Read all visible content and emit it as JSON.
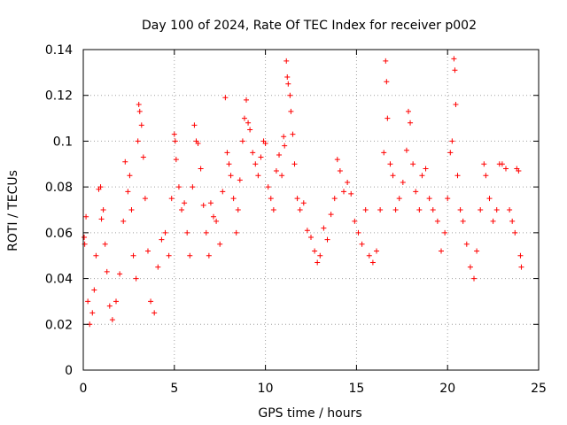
{
  "chart_data": {
    "type": "scatter",
    "title": "Day 100 of 2024, Rate Of TEC Index for receiver p002",
    "xlabel": "GPS time / hours",
    "ylabel": "ROTI / TECUs",
    "xlim": [
      0,
      25
    ],
    "ylim": [
      0,
      0.14
    ],
    "xticks": [
      0,
      5,
      10,
      15,
      20,
      25
    ],
    "xtick_labels": [
      "0",
      "5",
      "10",
      "15",
      "20",
      "25"
    ],
    "yticks": [
      0,
      0.02,
      0.04,
      0.06,
      0.08,
      0.1,
      0.12,
      0.14
    ],
    "ytick_labels": [
      "0",
      "0.02",
      "0.04",
      "0.06",
      "0.08",
      "0.1",
      "0.12",
      "0.14"
    ],
    "grid": true,
    "legend": "none",
    "marker": "+",
    "color": "#ff0000",
    "series": [
      {
        "values": [
          [
            0.05,
            0.058
          ],
          [
            0.08,
            0.055
          ],
          [
            0.15,
            0.067
          ],
          [
            0.25,
            0.03
          ],
          [
            0.35,
            0.02
          ],
          [
            0.5,
            0.025
          ],
          [
            0.6,
            0.035
          ],
          [
            0.7,
            0.05
          ],
          [
            0.85,
            0.079
          ],
          [
            0.95,
            0.08
          ],
          [
            1.0,
            0.066
          ],
          [
            1.1,
            0.07
          ],
          [
            1.2,
            0.055
          ],
          [
            1.3,
            0.043
          ],
          [
            1.45,
            0.028
          ],
          [
            1.6,
            0.022
          ],
          [
            1.8,
            0.03
          ],
          [
            2.0,
            0.042
          ],
          [
            2.2,
            0.065
          ],
          [
            2.3,
            0.091
          ],
          [
            2.45,
            0.078
          ],
          [
            2.55,
            0.085
          ],
          [
            2.65,
            0.07
          ],
          [
            2.75,
            0.05
          ],
          [
            2.9,
            0.04
          ],
          [
            3.0,
            0.1
          ],
          [
            3.05,
            0.116
          ],
          [
            3.1,
            0.113
          ],
          [
            3.2,
            0.107
          ],
          [
            3.3,
            0.093
          ],
          [
            3.4,
            0.075
          ],
          [
            3.55,
            0.052
          ],
          [
            3.7,
            0.03
          ],
          [
            3.9,
            0.025
          ],
          [
            4.1,
            0.045
          ],
          [
            4.3,
            0.057
          ],
          [
            4.5,
            0.06
          ],
          [
            4.7,
            0.05
          ],
          [
            4.85,
            0.075
          ],
          [
            5.0,
            0.103
          ],
          [
            5.05,
            0.1
          ],
          [
            5.1,
            0.092
          ],
          [
            5.25,
            0.08
          ],
          [
            5.4,
            0.07
          ],
          [
            5.55,
            0.073
          ],
          [
            5.7,
            0.06
          ],
          [
            5.85,
            0.05
          ],
          [
            6.0,
            0.08
          ],
          [
            6.1,
            0.107
          ],
          [
            6.2,
            0.1
          ],
          [
            6.3,
            0.099
          ],
          [
            6.45,
            0.088
          ],
          [
            6.6,
            0.072
          ],
          [
            6.75,
            0.06
          ],
          [
            6.9,
            0.05
          ],
          [
            7.0,
            0.073
          ],
          [
            7.15,
            0.067
          ],
          [
            7.3,
            0.065
          ],
          [
            7.5,
            0.055
          ],
          [
            7.65,
            0.078
          ],
          [
            7.8,
            0.119
          ],
          [
            7.9,
            0.095
          ],
          [
            8.0,
            0.09
          ],
          [
            8.1,
            0.085
          ],
          [
            8.25,
            0.075
          ],
          [
            8.4,
            0.06
          ],
          [
            8.5,
            0.07
          ],
          [
            8.6,
            0.083
          ],
          [
            8.75,
            0.1
          ],
          [
            8.85,
            0.11
          ],
          [
            8.95,
            0.118
          ],
          [
            9.05,
            0.108
          ],
          [
            9.15,
            0.105
          ],
          [
            9.3,
            0.095
          ],
          [
            9.45,
            0.09
          ],
          [
            9.6,
            0.085
          ],
          [
            9.75,
            0.093
          ],
          [
            9.9,
            0.1
          ],
          [
            10.0,
            0.099
          ],
          [
            10.15,
            0.08
          ],
          [
            10.3,
            0.075
          ],
          [
            10.45,
            0.07
          ],
          [
            10.6,
            0.087
          ],
          [
            10.75,
            0.094
          ],
          [
            10.9,
            0.085
          ],
          [
            11.0,
            0.102
          ],
          [
            11.05,
            0.098
          ],
          [
            11.15,
            0.135
          ],
          [
            11.2,
            0.128
          ],
          [
            11.25,
            0.125
          ],
          [
            11.35,
            0.12
          ],
          [
            11.4,
            0.113
          ],
          [
            11.5,
            0.103
          ],
          [
            11.6,
            0.09
          ],
          [
            11.75,
            0.075
          ],
          [
            11.9,
            0.07
          ],
          [
            12.1,
            0.073
          ],
          [
            12.3,
            0.061
          ],
          [
            12.5,
            0.058
          ],
          [
            12.7,
            0.052
          ],
          [
            12.85,
            0.047
          ],
          [
            13.0,
            0.05
          ],
          [
            13.2,
            0.062
          ],
          [
            13.4,
            0.057
          ],
          [
            13.6,
            0.068
          ],
          [
            13.8,
            0.075
          ],
          [
            13.95,
            0.092
          ],
          [
            14.1,
            0.087
          ],
          [
            14.3,
            0.078
          ],
          [
            14.5,
            0.082
          ],
          [
            14.7,
            0.077
          ],
          [
            14.9,
            0.065
          ],
          [
            15.1,
            0.06
          ],
          [
            15.3,
            0.055
          ],
          [
            15.5,
            0.07
          ],
          [
            15.7,
            0.05
          ],
          [
            15.9,
            0.047
          ],
          [
            16.1,
            0.052
          ],
          [
            16.3,
            0.07
          ],
          [
            16.5,
            0.095
          ],
          [
            16.6,
            0.135
          ],
          [
            16.65,
            0.126
          ],
          [
            16.7,
            0.11
          ],
          [
            16.85,
            0.09
          ],
          [
            17.0,
            0.085
          ],
          [
            17.15,
            0.07
          ],
          [
            17.35,
            0.075
          ],
          [
            17.55,
            0.082
          ],
          [
            17.75,
            0.096
          ],
          [
            17.85,
            0.113
          ],
          [
            17.95,
            0.108
          ],
          [
            18.1,
            0.09
          ],
          [
            18.25,
            0.078
          ],
          [
            18.45,
            0.07
          ],
          [
            18.6,
            0.085
          ],
          [
            18.8,
            0.088
          ],
          [
            19.0,
            0.075
          ],
          [
            19.2,
            0.07
          ],
          [
            19.45,
            0.065
          ],
          [
            19.65,
            0.052
          ],
          [
            19.85,
            0.06
          ],
          [
            20.0,
            0.075
          ],
          [
            20.15,
            0.095
          ],
          [
            20.25,
            0.1
          ],
          [
            20.35,
            0.136
          ],
          [
            20.4,
            0.131
          ],
          [
            20.45,
            0.116
          ],
          [
            20.55,
            0.085
          ],
          [
            20.7,
            0.07
          ],
          [
            20.85,
            0.065
          ],
          [
            21.05,
            0.055
          ],
          [
            21.25,
            0.045
          ],
          [
            21.45,
            0.04
          ],
          [
            21.6,
            0.052
          ],
          [
            21.8,
            0.07
          ],
          [
            22.0,
            0.09
          ],
          [
            22.1,
            0.085
          ],
          [
            22.3,
            0.075
          ],
          [
            22.5,
            0.065
          ],
          [
            22.7,
            0.07
          ],
          [
            22.85,
            0.09
          ],
          [
            23.0,
            0.09
          ],
          [
            23.2,
            0.088
          ],
          [
            23.4,
            0.07
          ],
          [
            23.55,
            0.065
          ],
          [
            23.7,
            0.06
          ],
          [
            23.8,
            0.088
          ],
          [
            23.9,
            0.087
          ],
          [
            24.0,
            0.05
          ],
          [
            24.05,
            0.045
          ]
        ]
      }
    ]
  }
}
